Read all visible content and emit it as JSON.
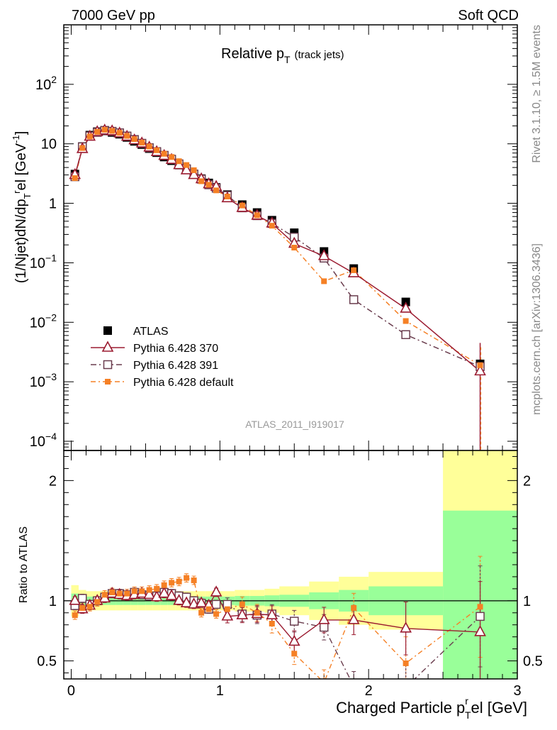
{
  "header": {
    "left": "7000 GeV pp",
    "right": "Soft QCD"
  },
  "side_labels": {
    "rivet": "Rivet 3.1.10, ≥ 1.5M events",
    "mcplots": "mcplots.cern.ch [arXiv:1306.3436]"
  },
  "colors": {
    "atlas": "#000000",
    "p370": "#9b1b30",
    "p391": "#6a3d4e",
    "pdefault": "#f58025",
    "band_inner": "#99ff99",
    "band_outer": "#ffff99"
  },
  "chart_data": [
    {
      "type": "scatter",
      "title_main": "Relative p",
      "title_sub": "T",
      "title_note": "(track jets)",
      "watermark": "ATLAS_2011_I919017",
      "ylabel": "(1/Njet)dN/dpᵀʳel [GeV⁻¹]",
      "ylabel_parts": [
        "(1/Njet)dN/dp",
        "T",
        "r",
        "el [GeV",
        "-1",
        "]"
      ],
      "yscale": "log",
      "ylim": [
        7e-05,
        1000
      ],
      "xlim": [
        -0.05,
        3.0
      ],
      "ytick_labels": [
        {
          "value": 0.0001,
          "base": "10",
          "exp": "−4"
        },
        {
          "value": 0.001,
          "base": "10",
          "exp": "−3"
        },
        {
          "value": 0.01,
          "base": "10",
          "exp": "−2"
        },
        {
          "value": 0.1,
          "base": "10",
          "exp": "−1"
        },
        {
          "value": 1,
          "base": "1",
          "exp": ""
        },
        {
          "value": 10,
          "base": "10",
          "exp": ""
        },
        {
          "value": 100,
          "base": "10",
          "exp": "2"
        }
      ],
      "legend": {
        "position": "lower-left",
        "entries": [
          "ATLAS",
          "Pythia 6.428 370",
          "Pythia 6.428 391",
          "Pythia 6.428 default"
        ]
      },
      "x": [
        0.025,
        0.075,
        0.125,
        0.175,
        0.225,
        0.275,
        0.325,
        0.375,
        0.425,
        0.475,
        0.525,
        0.575,
        0.625,
        0.675,
        0.725,
        0.775,
        0.825,
        0.875,
        0.925,
        0.975,
        1.05,
        1.15,
        1.25,
        1.35,
        1.5,
        1.7,
        1.9,
        2.25,
        2.75
      ],
      "series": [
        {
          "name": "ATLAS",
          "key": "atlas",
          "values": [
            3.1,
            9.0,
            14.0,
            16.0,
            16.5,
            15.5,
            14.5,
            12.8,
            11.0,
            9.7,
            8.3,
            7.1,
            6.0,
            5.2,
            4.4,
            3.7,
            3.1,
            2.6,
            2.2,
            1.85,
            1.4,
            0.95,
            0.7,
            0.52,
            0.32,
            0.155,
            0.08,
            0.022,
            0.002
          ]
        },
        {
          "name": "Pythia 6.428 370",
          "key": "p370",
          "values": [
            3.0,
            8.2,
            13.2,
            15.8,
            16.8,
            16.3,
            15.0,
            13.2,
            11.5,
            10.2,
            8.7,
            7.3,
            6.3,
            5.4,
            4.4,
            3.6,
            3.0,
            2.55,
            2.1,
            1.9,
            1.22,
            0.84,
            0.62,
            0.46,
            0.21,
            0.13,
            0.067,
            0.017,
            0.0015
          ]
        },
        {
          "name": "Pythia 6.428 391",
          "key": "p391",
          "values": [
            2.8,
            8.9,
            13.5,
            15.6,
            16.8,
            16.2,
            15.3,
            13.5,
            11.8,
            10.2,
            8.6,
            7.4,
            6.4,
            5.5,
            4.6,
            3.8,
            3.1,
            2.55,
            2.05,
            1.8,
            1.35,
            0.84,
            0.62,
            0.46,
            0.27,
            0.12,
            0.024,
            0.0062,
            0.0018
          ]
        },
        {
          "name": "Pythia 6.428 default",
          "key": "pdefault",
          "values": [
            2.65,
            8.5,
            13.3,
            15.9,
            17.2,
            16.5,
            15.3,
            13.6,
            12.0,
            10.5,
            9.0,
            7.8,
            6.8,
            6.0,
            5.1,
            4.4,
            3.6,
            2.35,
            2.05,
            1.65,
            1.3,
            0.92,
            0.63,
            0.42,
            0.18,
            0.049,
            0.075,
            0.0105,
            0.0019
          ]
        }
      ]
    },
    {
      "type": "scatter",
      "ylabel": "Ratio to ATLAS",
      "xlabel_parts": [
        "Charged Particle p",
        "r",
        "T",
        "el [GeV]"
      ],
      "ylim": [
        0.35,
        2.25
      ],
      "xlim": [
        -0.05,
        3.0
      ],
      "yticks": [
        0.5,
        1,
        2
      ],
      "ytick_labels": [
        "0.5",
        "1",
        "2"
      ],
      "xticks": [
        0,
        1,
        2,
        3
      ],
      "xtick_labels": [
        "0",
        "1",
        "2",
        "3"
      ],
      "x": [
        0.025,
        0.075,
        0.125,
        0.175,
        0.225,
        0.275,
        0.325,
        0.375,
        0.425,
        0.475,
        0.525,
        0.575,
        0.625,
        0.675,
        0.725,
        0.775,
        0.825,
        0.875,
        0.925,
        0.975,
        1.05,
        1.15,
        1.25,
        1.35,
        1.5,
        1.7,
        1.9,
        2.25,
        2.75
      ],
      "bands": {
        "edges": [
          0.0,
          0.05,
          0.1,
          0.15,
          0.2,
          0.25,
          0.3,
          0.35,
          0.4,
          0.45,
          0.5,
          0.55,
          0.6,
          0.65,
          0.7,
          0.75,
          0.8,
          0.85,
          0.9,
          0.95,
          1.0,
          1.1,
          1.2,
          1.3,
          1.4,
          1.6,
          1.8,
          2.0,
          2.5,
          3.0
        ],
        "inner": [
          0.06,
          0.04,
          0.035,
          0.035,
          0.035,
          0.035,
          0.035,
          0.035,
          0.035,
          0.035,
          0.035,
          0.035,
          0.035,
          0.035,
          0.035,
          0.035,
          0.035,
          0.035,
          0.035,
          0.035,
          0.035,
          0.04,
          0.04,
          0.045,
          0.05,
          0.07,
          0.09,
          0.12,
          0.75
        ],
        "outer": [
          0.13,
          0.09,
          0.08,
          0.08,
          0.08,
          0.08,
          0.08,
          0.08,
          0.08,
          0.08,
          0.08,
          0.08,
          0.08,
          0.08,
          0.08,
          0.08,
          0.08,
          0.08,
          0.08,
          0.08,
          0.08,
          0.09,
          0.09,
          0.1,
          0.12,
          0.16,
          0.2,
          0.24,
          1.25
        ]
      },
      "series": [
        {
          "name": "Pythia 6.428 370",
          "key": "p370",
          "values": [
            1.0,
            0.93,
            0.96,
            1.0,
            1.02,
            1.06,
            1.05,
            1.04,
            1.05,
            1.06,
            1.05,
            1.03,
            1.06,
            1.04,
            1.0,
            0.98,
            0.97,
            0.98,
            0.96,
            1.07,
            0.87,
            0.88,
            0.89,
            0.88,
            0.66,
            0.84,
            0.84,
            0.77,
            0.74
          ]
        },
        {
          "name": "Pythia 6.428 391",
          "key": "p391",
          "values": [
            0.96,
            1.02,
            0.97,
            1.0,
            1.03,
            1.06,
            1.06,
            1.05,
            1.07,
            1.05,
            1.04,
            1.04,
            1.07,
            1.06,
            1.04,
            1.03,
            1.0,
            0.98,
            0.93,
            0.97,
            0.97,
            0.89,
            0.88,
            0.89,
            0.83,
            0.78,
            0.29,
            0.28,
            0.87
          ]
        },
        {
          "name": "Pythia 6.428 default",
          "key": "pdefault",
          "values": [
            0.88,
            0.94,
            0.95,
            0.99,
            1.05,
            1.07,
            1.06,
            1.06,
            1.08,
            1.08,
            1.09,
            1.1,
            1.13,
            1.15,
            1.16,
            1.19,
            1.17,
            0.9,
            0.93,
            0.89,
            0.93,
            0.97,
            0.9,
            0.81,
            0.56,
            0.32,
            0.94,
            0.48,
            0.95
          ]
        }
      ]
    }
  ]
}
